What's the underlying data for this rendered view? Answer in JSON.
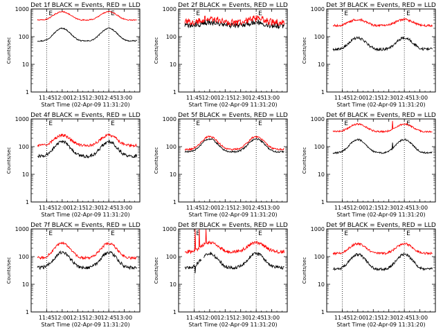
{
  "figure": {
    "background": "#ffffff",
    "axis_color": "#000000",
    "events_color": "#000000",
    "lld_color": "#ff0000"
  },
  "chart_data": [
    {
      "type": "line",
      "title": "Det 1f BLACK = Events, RED = LLD",
      "ylabel": "Counts/sec",
      "xlabel": "Start Time (02-Apr-09 11:31:20)",
      "yscale": "log",
      "ylim": [
        1,
        1000
      ],
      "yticks": [
        "1",
        "10",
        "100",
        "1000"
      ],
      "xticks": [
        "11:45",
        "12:00",
        "12:15",
        "12:30",
        "12:45",
        "13:00"
      ],
      "xlim_min": [
        11.5,
        13.25
      ],
      "marker_letter": "E",
      "markers_min": [
        11.75,
        12.75
      ],
      "series": [
        {
          "name": "Events",
          "color": "#000000",
          "base": 70,
          "peak": 200,
          "noise": 0.02,
          "spikes": []
        },
        {
          "name": "LLD",
          "color": "#ff0000",
          "base": 400,
          "peak": 800,
          "noise": 0.02,
          "spikes": []
        }
      ]
    },
    {
      "type": "line",
      "title": "Det 2f BLACK = Events, RED = LLD",
      "ylabel": "Counts/sec",
      "xlabel": "Start Time (02-Apr-09 11:31:20)",
      "yscale": "log",
      "ylim": [
        1,
        1000
      ],
      "yticks": [
        "1",
        "10",
        "100",
        "1000"
      ],
      "xticks": [
        "11:45",
        "12:00",
        "12:15",
        "12:30",
        "12:45",
        "13:00"
      ],
      "xlim_min": [
        11.5,
        13.25
      ],
      "marker_letter": "E",
      "markers_min": [
        11.75,
        12.75
      ],
      "series": [
        {
          "name": "Events",
          "color": "#000000",
          "base": 250,
          "peak": 330,
          "noise": 0.1,
          "spikes": []
        },
        {
          "name": "LLD",
          "color": "#ff0000",
          "base": 330,
          "peak": 450,
          "noise": 0.12,
          "spikes": []
        }
      ]
    },
    {
      "type": "line",
      "title": "Det 3f BLACK = Events, RED = LLD",
      "ylabel": "Counts/sec",
      "xlabel": "Start Time (02-Apr-09 11:31:20)",
      "yscale": "log",
      "ylim": [
        1,
        1000
      ],
      "yticks": [
        "1",
        "10",
        "100",
        "1000"
      ],
      "xticks": [
        "11:45",
        "12:00",
        "12:15",
        "12:30",
        "12:45",
        "13:00"
      ],
      "xlim_min": [
        11.5,
        13.25
      ],
      "marker_letter": "E",
      "markers_min": [
        11.75,
        12.75
      ],
      "series": [
        {
          "name": "Events",
          "color": "#000000",
          "base": 35,
          "peak": 90,
          "noise": 0.05,
          "spikes": []
        },
        {
          "name": "LLD",
          "color": "#ff0000",
          "base": 250,
          "peak": 420,
          "noise": 0.04,
          "spikes": []
        }
      ]
    },
    {
      "type": "line",
      "title": "Det 4f BLACK = Events, RED = LLD",
      "ylabel": "Counts/sec",
      "xlabel": "Start Time (02-Apr-09 11:31:20)",
      "yscale": "log",
      "ylim": [
        1,
        1000
      ],
      "yticks": [
        "1",
        "10",
        "100",
        "1000"
      ],
      "xticks": [
        "11:45",
        "12:00",
        "12:15",
        "12:30",
        "12:45",
        "13:00"
      ],
      "xlim_min": [
        11.5,
        13.25
      ],
      "marker_letter": "E",
      "markers_min": [
        11.75,
        12.75
      ],
      "series": [
        {
          "name": "Events",
          "color": "#000000",
          "base": 45,
          "peak": 150,
          "noise": 0.06,
          "spikes": []
        },
        {
          "name": "LLD",
          "color": "#ff0000",
          "base": 110,
          "peak": 260,
          "noise": 0.05,
          "spikes": []
        }
      ]
    },
    {
      "type": "line",
      "title": "Det 5f BLACK = Events, RED = LLD",
      "ylabel": "Counts/sec",
      "xlabel": "Start Time (02-Apr-09 11:31:20)",
      "yscale": "log",
      "ylim": [
        1,
        1000
      ],
      "yticks": [
        "1",
        "10",
        "100",
        "1000"
      ],
      "xticks": [
        "11:45",
        "12:00",
        "12:15",
        "12:30",
        "12:45",
        "13:00"
      ],
      "xlim_min": [
        11.5,
        13.25
      ],
      "marker_letter": "E",
      "markers_min": [
        11.75,
        12.75
      ],
      "series": [
        {
          "name": "Events",
          "color": "#000000",
          "base": 65,
          "peak": 190,
          "noise": 0.03,
          "spikes": []
        },
        {
          "name": "LLD",
          "color": "#ff0000",
          "base": 80,
          "peak": 230,
          "noise": 0.03,
          "spikes": []
        }
      ]
    },
    {
      "type": "line",
      "title": "Det 6f BLACK = Events, RED = LLD",
      "ylabel": "Counts/sec",
      "xlabel": "Start Time (02-Apr-09 11:31:20)",
      "yscale": "log",
      "ylim": [
        1,
        1000
      ],
      "yticks": [
        "1",
        "10",
        "100",
        "1000"
      ],
      "xticks": [
        "11:45",
        "12:00",
        "12:15",
        "12:30",
        "12:45",
        "13:00"
      ],
      "xlim_min": [
        11.5,
        13.25
      ],
      "marker_letter": "E",
      "markers_min": [
        11.75,
        12.75
      ],
      "series": [
        {
          "name": "Events",
          "color": "#000000",
          "base": 60,
          "peak": 180,
          "noise": 0.03,
          "spikes": [
            {
              "t": 12.56,
              "value": 140
            }
          ]
        },
        {
          "name": "LLD",
          "color": "#ff0000",
          "base": 350,
          "peak": 650,
          "noise": 0.03,
          "spikes": [
            {
              "t": 12.56,
              "value": 850
            }
          ]
        }
      ]
    },
    {
      "type": "line",
      "title": "Det 7f BLACK = Events, RED = LLD",
      "ylabel": "Counts/sec",
      "xlabel": "Start Time (02-Apr-09 11:31:20)",
      "yscale": "log",
      "ylim": [
        1,
        1000
      ],
      "yticks": [
        "1",
        "10",
        "100",
        "1000"
      ],
      "xticks": [
        "11:45",
        "12:00",
        "12:15",
        "12:30",
        "12:45",
        "13:00"
      ],
      "xlim_min": [
        11.5,
        13.25
      ],
      "marker_letter": "E",
      "markers_min": [
        11.75,
        12.75
      ],
      "series": [
        {
          "name": "Events",
          "color": "#000000",
          "base": 40,
          "peak": 140,
          "noise": 0.06,
          "spikes": []
        },
        {
          "name": "LLD",
          "color": "#ff0000",
          "base": 90,
          "peak": 300,
          "noise": 0.05,
          "spikes": []
        }
      ]
    },
    {
      "type": "line",
      "title": "Det 8f BLACK = Events, RED = LLD",
      "ylabel": "Counts/sec",
      "xlabel": "Start Time (02-Apr-09 11:31:20)",
      "yscale": "log",
      "ylim": [
        1,
        1000
      ],
      "yticks": [
        "1",
        "10",
        "100",
        "1000"
      ],
      "xticks": [
        "11:45",
        "12:00",
        "12:15",
        "12:30",
        "12:45",
        "13:00"
      ],
      "xlim_min": [
        11.5,
        13.25
      ],
      "marker_letter": "E",
      "markers_min": [
        11.75,
        12.75
      ],
      "series": [
        {
          "name": "Events",
          "color": "#000000",
          "base": 40,
          "peak": 130,
          "noise": 0.06,
          "gaps": [
            [
              11.87,
              11.9
            ]
          ],
          "spikes": [
            {
              "t": 11.77,
              "value": 25
            }
          ]
        },
        {
          "name": "LLD",
          "color": "#ff0000",
          "base": 150,
          "peak": 330,
          "noise": 0.06,
          "spikes": [
            {
              "t": 11.77,
              "value": 1000
            },
            {
              "t": 11.83,
              "value": 1000
            },
            {
              "t": 11.94,
              "value": 1000
            }
          ]
        }
      ]
    },
    {
      "type": "line",
      "title": "Det 9f BLACK = Events, RED = LLD",
      "ylabel": "Counts/sec",
      "xlabel": "Start Time (02-Apr-09 11:31:20)",
      "yscale": "log",
      "ylim": [
        1,
        1000
      ],
      "yticks": [
        "1",
        "10",
        "100",
        "1000"
      ],
      "xticks": [
        "11:45",
        "12:00",
        "12:15",
        "12:30",
        "12:45",
        "13:00"
      ],
      "xlim_min": [
        11.5,
        13.25
      ],
      "marker_letter": "E",
      "markers_min": [
        11.75,
        12.75
      ],
      "series": [
        {
          "name": "Events",
          "color": "#000000",
          "base": 35,
          "peak": 120,
          "noise": 0.05,
          "spikes": []
        },
        {
          "name": "LLD",
          "color": "#ff0000",
          "base": 130,
          "peak": 290,
          "noise": 0.04,
          "spikes": []
        }
      ]
    }
  ]
}
